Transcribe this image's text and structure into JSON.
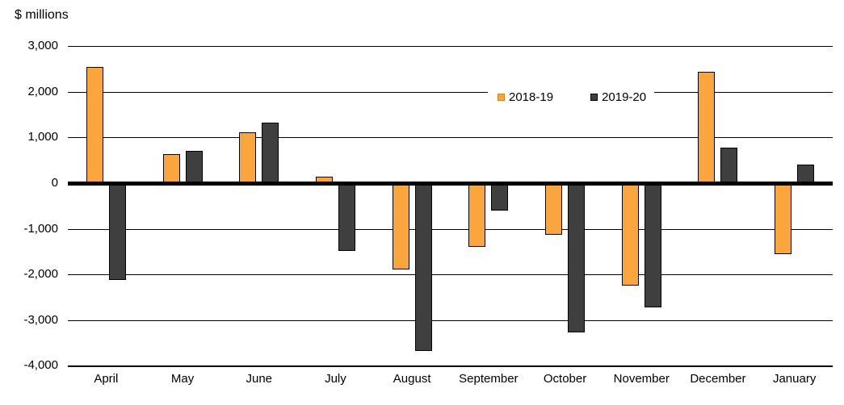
{
  "axis_title": "$ millions",
  "chart_data": {
    "type": "bar",
    "title": "",
    "ylabel": "$ millions",
    "xlabel": "",
    "grid": true,
    "legend_position": "inside-top-center",
    "ylim": [
      -4000,
      3000
    ],
    "yticks": [
      3000,
      2000,
      1000,
      0,
      -1000,
      -2000,
      -3000,
      -4000
    ],
    "ytick_labels": [
      "3,000",
      "2,000",
      "1,000",
      "0",
      "-1,000",
      "-2,000",
      "-3,000",
      "-4,000"
    ],
    "categories": [
      "April",
      "May",
      "June",
      "July",
      "August",
      "September",
      "October",
      "November",
      "December",
      "January"
    ],
    "series": [
      {
        "name": "2018-19",
        "color": "#FAA63C",
        "values": [
          2550,
          640,
          1120,
          140,
          -1890,
          -1390,
          -1130,
          -2250,
          2440,
          -1550
        ]
      },
      {
        "name": "2019-20",
        "color": "#3F3F3F",
        "values": [
          -2120,
          710,
          1320,
          -1490,
          -3680,
          -600,
          -3270,
          -2720,
          780,
          410
        ]
      }
    ]
  },
  "colors": {
    "background": "#FFFFFF",
    "axis": "#000000",
    "series_2018_19": "#FAA63C",
    "series_2019_20": "#3F3F3F"
  }
}
